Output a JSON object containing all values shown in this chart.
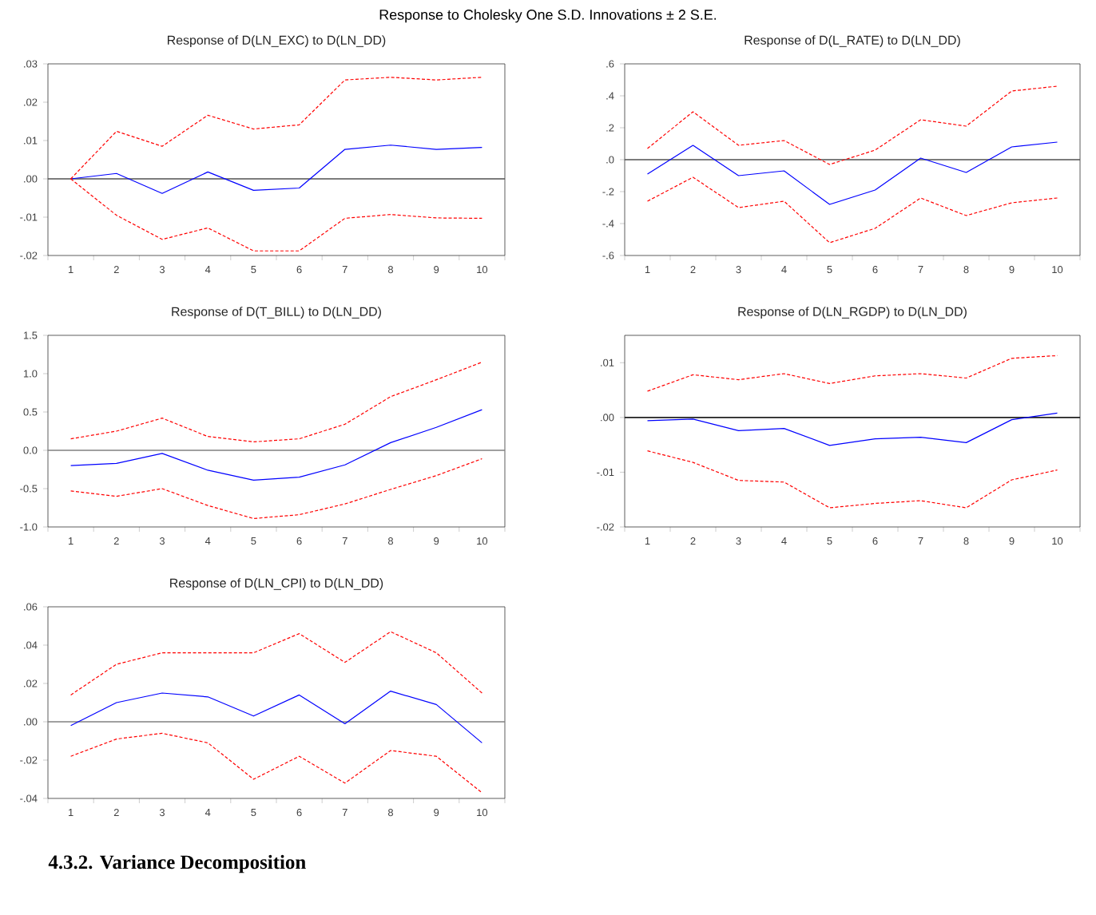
{
  "chart_data": [
    {
      "type": "line",
      "title": "Response of D(LN_EXC) to D(LN_DD)",
      "categories": [
        "1",
        "2",
        "3",
        "4",
        "5",
        "6",
        "7",
        "8",
        "9",
        "10"
      ],
      "ylim": [
        -0.02,
        0.03
      ],
      "yticks": [
        {
          "value": -0.02,
          "label": "-.02"
        },
        {
          "value": -0.01,
          "label": "-.01"
        },
        {
          "value": 0,
          "label": ".00"
        },
        {
          "value": 0.01,
          "label": ".01"
        },
        {
          "value": 0.02,
          "label": ".02"
        },
        {
          "value": 0.03,
          "label": ".03"
        }
      ],
      "ref_lines": [
        {
          "axis": "y",
          "value": 0,
          "color": "#505050"
        }
      ],
      "annotations": [
        "Response to Cholesky One S.D. Innovations ± 2 S.E."
      ],
      "series": [
        {
          "color": "#0000ff",
          "line_style": "solid",
          "values": [
            0,
            0.0014,
            -0.0038,
            0.0018,
            -0.003,
            -0.0024,
            0.0077,
            0.0088,
            0.0077,
            0.0082
          ]
        },
        {
          "color": "#ff0000",
          "line_style": "dashed",
          "values": [
            0,
            0.0124,
            0.0085,
            0.0166,
            0.013,
            0.0141,
            0.0258,
            0.0265,
            0.0258,
            0.0265
          ]
        },
        {
          "color": "#ff0000",
          "line_style": "dashed",
          "values": [
            0,
            -0.0095,
            -0.0158,
            -0.0128,
            -0.0188,
            -0.0188,
            -0.0103,
            -0.0093,
            -0.0102,
            -0.0103
          ]
        }
      ]
    },
    {
      "type": "line",
      "title": "Response of D(L_RATE) to D(LN_DD)",
      "categories": [
        "1",
        "2",
        "3",
        "4",
        "5",
        "6",
        "7",
        "8",
        "9",
        "10"
      ],
      "ylim": [
        -0.6,
        0.6
      ],
      "yticks": [
        {
          "value": -0.6,
          "label": "-.6"
        },
        {
          "value": -0.4,
          "label": "-.4"
        },
        {
          "value": -0.2,
          "label": "-.2"
        },
        {
          "value": 0,
          "label": ".0"
        },
        {
          "value": 0.2,
          "label": ".2"
        },
        {
          "value": 0.4,
          "label": ".4"
        },
        {
          "value": 0.6,
          "label": ".6"
        }
      ],
      "ref_lines": [
        {
          "axis": "y",
          "value": 0,
          "color": "#505050"
        }
      ],
      "series": [
        {
          "color": "#0000ff",
          "line_style": "solid",
          "values": [
            -0.09,
            0.09,
            -0.1,
            -0.07,
            -0.28,
            -0.19,
            0.01,
            -0.08,
            0.08,
            0.11
          ]
        },
        {
          "color": "#ff0000",
          "line_style": "dashed",
          "values": [
            0.07,
            0.3,
            0.09,
            0.12,
            -0.03,
            0.06,
            0.25,
            0.21,
            0.43,
            0.46
          ]
        },
        {
          "color": "#ff0000",
          "line_style": "dashed",
          "values": [
            -0.26,
            -0.11,
            -0.3,
            -0.26,
            -0.52,
            -0.43,
            -0.24,
            -0.35,
            -0.27,
            -0.24
          ]
        }
      ]
    },
    {
      "type": "line",
      "title": "Response of D(T_BILL) to D(LN_DD)",
      "categories": [
        "1",
        "2",
        "3",
        "4",
        "5",
        "6",
        "7",
        "8",
        "9",
        "10"
      ],
      "ylim": [
        -1.0,
        1.5
      ],
      "yticks": [
        {
          "value": -1.0,
          "label": "-1.0"
        },
        {
          "value": -0.5,
          "label": "-0.5"
        },
        {
          "value": 0,
          "label": "0.0"
        },
        {
          "value": 0.5,
          "label": "0.5"
        },
        {
          "value": 1.0,
          "label": "1.0"
        },
        {
          "value": 1.5,
          "label": "1.5"
        }
      ],
      "ref_lines": [
        {
          "axis": "y",
          "value": 0,
          "color": "#808080"
        }
      ],
      "series": [
        {
          "color": "#0000ff",
          "line_style": "solid",
          "values": [
            -0.2,
            -0.17,
            -0.04,
            -0.26,
            -0.39,
            -0.35,
            -0.19,
            0.1,
            0.3,
            0.53
          ]
        },
        {
          "color": "#ff0000",
          "line_style": "dashed",
          "values": [
            0.15,
            0.25,
            0.42,
            0.18,
            0.11,
            0.15,
            0.34,
            0.7,
            0.92,
            1.15
          ]
        },
        {
          "color": "#ff0000",
          "line_style": "dashed",
          "values": [
            -0.53,
            -0.6,
            -0.5,
            -0.72,
            -0.89,
            -0.84,
            -0.7,
            -0.51,
            -0.33,
            -0.11
          ]
        }
      ]
    },
    {
      "type": "line",
      "title": "Response of D(LN_RGDP) to D(LN_DD)",
      "categories": [
        "1",
        "2",
        "3",
        "4",
        "5",
        "6",
        "7",
        "8",
        "9",
        "10"
      ],
      "ylim": [
        -0.02,
        0.015
      ],
      "yticks": [
        {
          "value": -0.02,
          "label": "-.02"
        },
        {
          "value": -0.01,
          "label": "-.01"
        },
        {
          "value": 0,
          "label": ".00"
        },
        {
          "value": 0.01,
          "label": ".01"
        }
      ],
      "ref_lines": [
        {
          "axis": "y",
          "value": 0,
          "color": "#202020"
        }
      ],
      "series": [
        {
          "color": "#0000ff",
          "line_style": "solid",
          "values": [
            -0.0006,
            -0.0003,
            -0.0024,
            -0.002,
            -0.0051,
            -0.0039,
            -0.0036,
            -0.0046,
            -0.0004,
            0.0008
          ]
        },
        {
          "color": "#ff0000",
          "line_style": "dashed",
          "values": [
            0.0048,
            0.0078,
            0.0069,
            0.008,
            0.0062,
            0.0076,
            0.008,
            0.0072,
            0.0108,
            0.0113
          ]
        },
        {
          "color": "#ff0000",
          "line_style": "dashed",
          "values": [
            -0.0061,
            -0.0082,
            -0.0115,
            -0.0118,
            -0.0165,
            -0.0157,
            -0.0152,
            -0.0165,
            -0.0114,
            -0.0096
          ]
        }
      ]
    },
    {
      "type": "line",
      "title": "Response of D(LN_CPI) to D(LN_DD)",
      "categories": [
        "1",
        "2",
        "3",
        "4",
        "5",
        "6",
        "7",
        "8",
        "9",
        "10"
      ],
      "ylim": [
        -0.04,
        0.06
      ],
      "yticks": [
        {
          "value": -0.04,
          "label": "-.04"
        },
        {
          "value": -0.02,
          "label": "-.02"
        },
        {
          "value": 0,
          "label": ".00"
        },
        {
          "value": 0.02,
          "label": ".02"
        },
        {
          "value": 0.04,
          "label": ".04"
        },
        {
          "value": 0.06,
          "label": ".06"
        }
      ],
      "ref_lines": [
        {
          "axis": "y",
          "value": 0,
          "color": "#808080"
        }
      ],
      "annotations": [
        "**4.3.2.    Variance Decomposition**"
      ],
      "series": [
        {
          "color": "#0000ff",
          "line_style": "solid",
          "values": [
            -0.002,
            0.01,
            0.015,
            0.013,
            0.003,
            0.014,
            -0.001,
            0.016,
            0.009,
            -0.011
          ]
        },
        {
          "color": "#ff0000",
          "line_style": "dashed",
          "values": [
            0.014,
            0.03,
            0.036,
            0.036,
            0.036,
            0.046,
            0.031,
            0.047,
            0.036,
            0.015
          ]
        },
        {
          "color": "#ff0000",
          "line_style": "dashed",
          "values": [
            -0.018,
            -0.009,
            -0.006,
            -0.011,
            -0.03,
            -0.018,
            -0.032,
            -0.015,
            -0.018,
            -0.037
          ]
        }
      ]
    }
  ]
}
